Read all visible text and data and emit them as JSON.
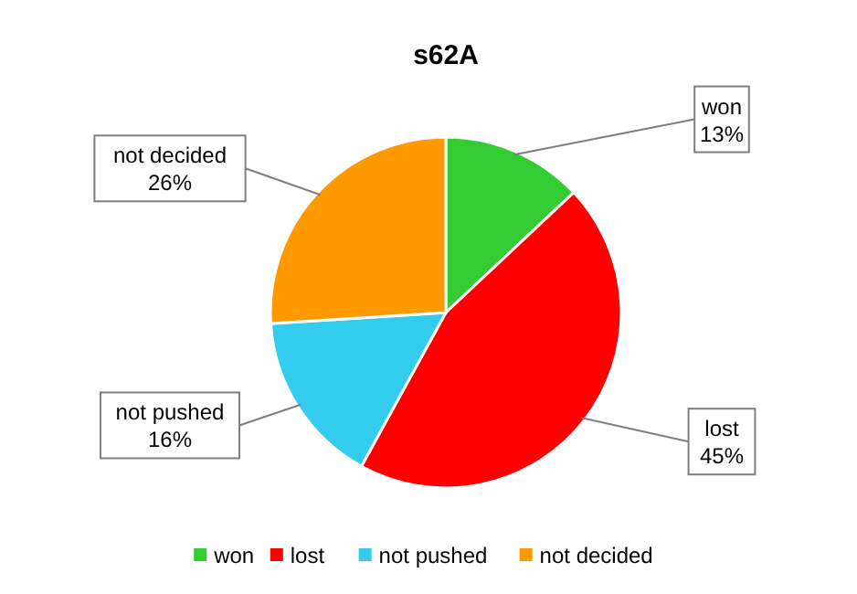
{
  "chart_data": {
    "type": "pie",
    "title": "s62A",
    "categories": [
      "won",
      "lost",
      "not pushed",
      "not decided"
    ],
    "values": [
      13,
      45,
      16,
      26
    ],
    "value_labels": [
      "13%",
      "45%",
      "16%",
      "26%"
    ],
    "colors": [
      "#33cc33",
      "#ff0000",
      "#33ccee",
      "#ff9900"
    ],
    "legend": "bottom"
  }
}
